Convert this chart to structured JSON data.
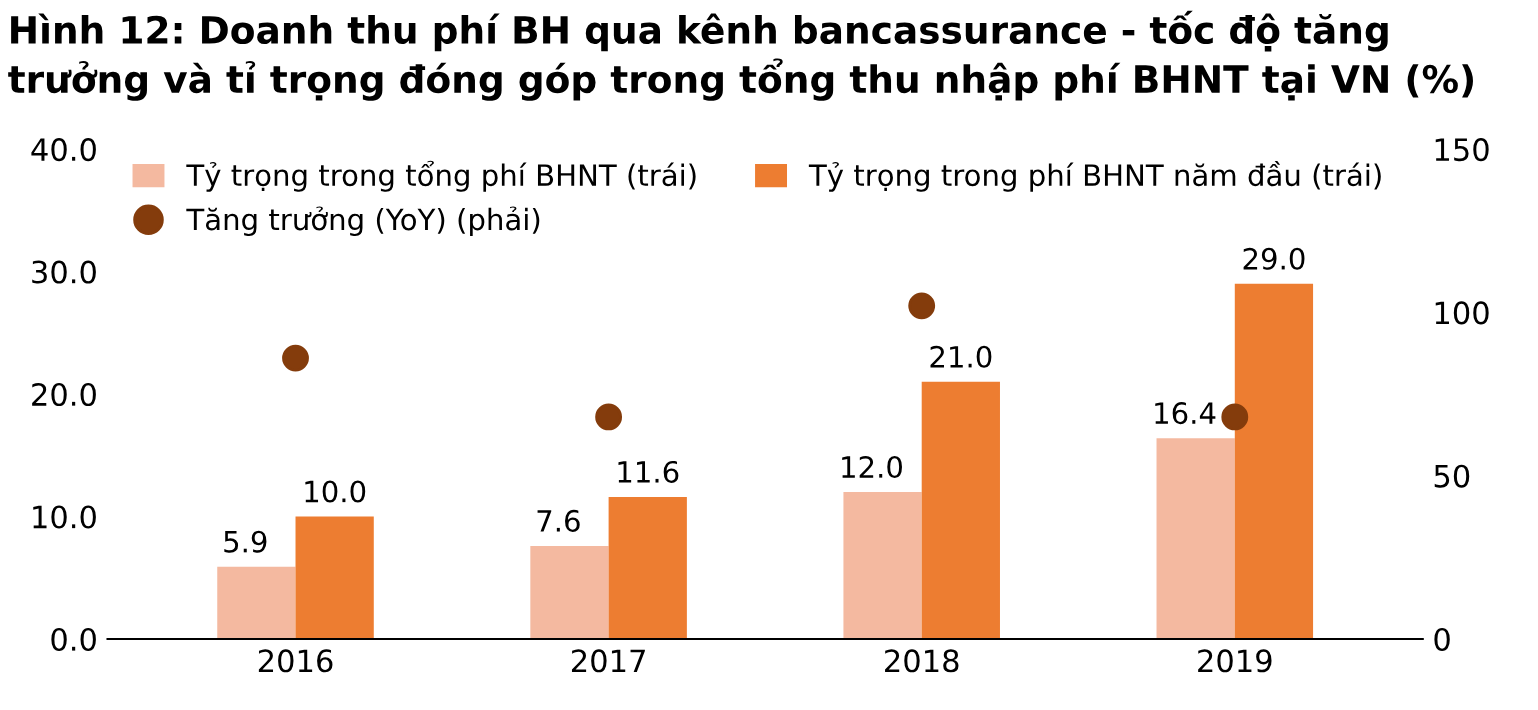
{
  "chart_data": {
    "type": "bar",
    "title": "Hình 12: Doanh thu phí BH qua kênh bancassurance - tốc độ tăng\ntrưởng và tỉ trọng đóng góp trong tổng thu nhập phí BHNT tại VN (%)",
    "categories": [
      "2016",
      "2017",
      "2018",
      "2019"
    ],
    "series": [
      {
        "name": "Tỷ trọng trong tổng phí BHNT (trái)",
        "color": "#f4b9a0",
        "values": [
          5.9,
          7.6,
          12.0,
          16.4
        ],
        "value_labels": [
          "5.9",
          "7.6",
          "12.0",
          "16.4"
        ]
      },
      {
        "name": "Tỷ trọng trong phí BHNT năm đầu (trái)",
        "color": "#ed7d31",
        "values": [
          10.0,
          11.6,
          21.0,
          29.0
        ],
        "value_labels": [
          "10.0",
          "11.6",
          "21.0",
          "29.0"
        ]
      },
      {
        "name": "Tăng trưởng (YoY) (phải)",
        "type": "scatter",
        "axis": "y2",
        "color": "#843c0c",
        "values": [
          86,
          68,
          102,
          68
        ]
      }
    ],
    "ylim": [
      0,
      40
    ],
    "yticks": [
      {
        "value": 0,
        "label": "0.0"
      },
      {
        "value": 10,
        "label": "10.0"
      },
      {
        "value": 20,
        "label": "20.0"
      },
      {
        "value": 30,
        "label": "30.0"
      },
      {
        "value": 40,
        "label": "40.0"
      }
    ],
    "y2lim": [
      0,
      150
    ],
    "y2ticks": [
      0,
      50,
      100,
      150
    ],
    "grid": false,
    "legend": "top",
    "marker": "circle"
  }
}
